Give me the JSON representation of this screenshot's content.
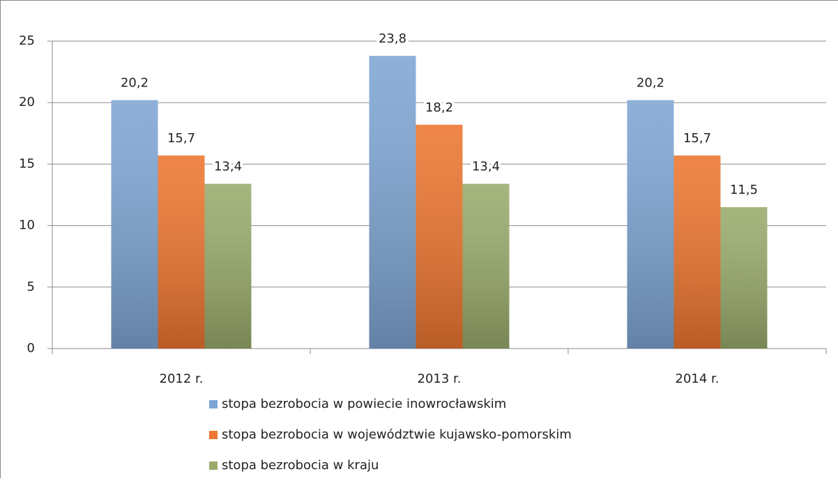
{
  "chart_data": {
    "type": "bar",
    "categories": [
      "2012 r.",
      "2013 r.",
      "2014 r."
    ],
    "series": [
      {
        "name": "stopa bezrobocia w powiecie inowrocławskim",
        "color": "#7fa6d4",
        "values": [
          20.2,
          23.8,
          20.2
        ],
        "value_labels": [
          "20,2",
          "23,8",
          "20,2"
        ]
      },
      {
        "name": "stopa bezrobocia w województwie kujawsko-pomorskim",
        "color": "#ed7630",
        "values": [
          15.7,
          18.2,
          15.7
        ],
        "value_labels": [
          "15,7",
          "18,2",
          "15,7"
        ]
      },
      {
        "name": "stopa bezrobocia w kraju",
        "color": "#9aab6c",
        "values": [
          13.4,
          13.4,
          11.5
        ],
        "value_labels": [
          "13,4",
          "13,4",
          "11,5"
        ]
      }
    ],
    "ylim": [
      0,
      25
    ],
    "yticks": [
      0,
      5,
      10,
      15,
      20,
      25
    ],
    "grid": true,
    "legend": "bottom"
  }
}
